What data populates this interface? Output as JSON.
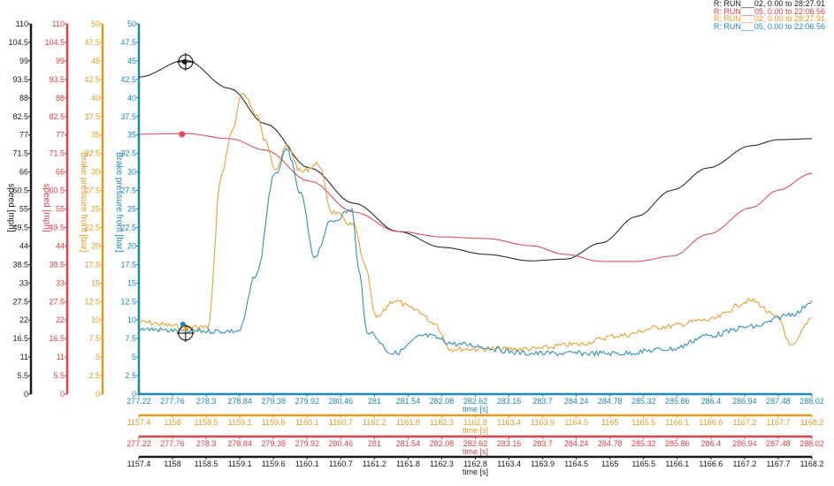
{
  "legend": [
    {
      "label": "R: RUN___02, 0.00 to 28:27.91",
      "color": "#1a1a1a"
    },
    {
      "label": "R: RUN___05, 0.00 to 22:06.56",
      "color": "#d9434b"
    },
    {
      "label": "R: RUN___02, 0.00 to 28:27.91",
      "color": "#e39a1e"
    },
    {
      "label": "R: RUN___05, 0.00 to 22:06.56",
      "color": "#1f88b0"
    }
  ],
  "chart_data": {
    "type": "line",
    "y_axes": [
      {
        "id": "black",
        "title": "speed [mph]",
        "color": "#1a1a1a",
        "range": [
          0,
          110
        ],
        "ticks": [
          "0",
          "5.5",
          "11",
          "16.5",
          "22",
          "27.5",
          "33",
          "38.5",
          "44",
          "49.5",
          "55",
          "60.5",
          "66",
          "71.5",
          "77",
          "82.5",
          "88",
          "93.5",
          "99",
          "104.5",
          "110"
        ]
      },
      {
        "id": "red",
        "title": "speed [mph]",
        "color": "#d9434b",
        "range": [
          0,
          110
        ],
        "ticks": [
          "0",
          "5.5",
          "11",
          "16.5",
          "22",
          "27.5",
          "33",
          "38.5",
          "44",
          "49.5",
          "55",
          "60.5",
          "66",
          "71.5",
          "77",
          "82.5",
          "88",
          "93.5",
          "99",
          "104.5",
          "110"
        ]
      },
      {
        "id": "orange",
        "title": "Brake pressure front [bar]",
        "color": "#e39a1e",
        "range": [
          0,
          50
        ],
        "ticks": [
          "0",
          "2.5",
          "5",
          "7.5",
          "10",
          "12.5",
          "15",
          "17.5",
          "20",
          "22.5",
          "25",
          "27.5",
          "30",
          "32.5",
          "35",
          "37.5",
          "40",
          "42.5",
          "45",
          "47.5",
          "50"
        ]
      },
      {
        "id": "blue",
        "title": "Brake pressure front [bar]",
        "color": "#1f88b0",
        "range": [
          0,
          50
        ],
        "ticks": [
          "0",
          "2.5",
          "5",
          "7.5",
          "10",
          "12.5",
          "15",
          "17.5",
          "20",
          "22.5",
          "25",
          "27.5",
          "30",
          "32.5",
          "35",
          "37.5",
          "40",
          "42.5",
          "45",
          "47.5",
          "50"
        ]
      }
    ],
    "x_axes": [
      {
        "id": "blue",
        "title": "time [s]",
        "color": "#1f88b0",
        "ticks": [
          "277.22",
          "277.76",
          "278.3",
          "278.84",
          "279.38",
          "279.92",
          "280.46",
          "281",
          "281.54",
          "282.08",
          "282.62",
          "283.16",
          "283.7",
          "284.24",
          "284.78",
          "285.32",
          "285.86",
          "286.4",
          "286.94",
          "287.48",
          "288.02"
        ]
      },
      {
        "id": "orange",
        "title": "time [s]",
        "color": "#e39a1e",
        "ticks": [
          "1157.4",
          "1158",
          "1158.5",
          "1159.1",
          "1159.6",
          "1160.1",
          "1160.7",
          "1161.2",
          "1161.8",
          "1162.3",
          "1162.8",
          "1163.4",
          "1163.9",
          "1164.5",
          "1165",
          "1165.5",
          "1166.1",
          "1166.6",
          "1167.2",
          "1167.7",
          "1168.2"
        ]
      },
      {
        "id": "red",
        "title": "time [s]",
        "color": "#d9434b",
        "ticks": [
          "277.22",
          "277.76",
          "278.3",
          "278.84",
          "279.38",
          "279.92",
          "280.46",
          "281",
          "281.54",
          "282.08",
          "282.62",
          "283.16",
          "283.7",
          "284.24",
          "284.78",
          "285.32",
          "285.86",
          "286.4",
          "286.94",
          "287.48",
          "288.02"
        ]
      },
      {
        "id": "black",
        "title": "time [s]",
        "color": "#1a1a1a",
        "ticks": [
          "1157.4",
          "1158",
          "1158.5",
          "1159.1",
          "1159.6",
          "1160.1",
          "1160.7",
          "1161.2",
          "1161.8",
          "1162.3",
          "1162.8",
          "1163.4",
          "1163.9",
          "1164.5",
          "1165",
          "1165.5",
          "1166.1",
          "1166.6",
          "1167.2",
          "1167.7",
          "1168.2"
        ]
      }
    ],
    "x_range": [
      277.22,
      288.02
    ],
    "series": [
      {
        "name": "RUN___02 speed",
        "axis": "black",
        "color": "#1a1a1a",
        "x": [
          277.22,
          277.97,
          278.68,
          279.25,
          279.96,
          280.67,
          281.38,
          282.09,
          282.8,
          283.51,
          284.07,
          284.64,
          285.21,
          285.78,
          286.35,
          287.05,
          287.48,
          288.02
        ],
        "y": [
          94.2,
          99.2,
          90.8,
          80.3,
          67.2,
          56.7,
          48.3,
          43.6,
          41.5,
          39.6,
          40.1,
          44.9,
          52.8,
          60.6,
          67.2,
          73.8,
          75.6,
          75.9
        ]
      },
      {
        "name": "RUN___05 speed",
        "axis": "red",
        "color": "#d9434b",
        "x": [
          277.22,
          277.97,
          278.68,
          279.25,
          279.96,
          280.67,
          281.38,
          282.09,
          282.8,
          283.51,
          284.07,
          284.64,
          285.21,
          285.78,
          286.35,
          287.05,
          287.48,
          288.02
        ],
        "y": [
          77.2,
          77.4,
          75.9,
          72.5,
          63.3,
          54.1,
          48.3,
          46.7,
          46.2,
          44.1,
          41.5,
          39.4,
          39.4,
          41.0,
          47.5,
          55.4,
          60.6,
          65.6
        ]
      },
      {
        "name": "RUN___02 brake pressure",
        "axis": "orange",
        "color": "#e39a1e",
        "x": [
          277.22,
          277.97,
          278.33,
          278.54,
          278.71,
          278.89,
          279.11,
          279.25,
          279.42,
          279.6,
          279.82,
          280.1,
          280.32,
          280.67,
          280.84,
          281.03,
          281.31,
          281.66,
          281.95,
          282.23,
          282.8,
          283.51,
          284.22,
          284.93,
          285.64,
          286.35,
          287.05,
          287.48,
          287.69,
          288.02
        ],
        "y": [
          9.7,
          9.1,
          9.0,
          29.4,
          35.3,
          40.7,
          37.7,
          34.1,
          30.5,
          33.5,
          30.0,
          31.1,
          24.6,
          22.8,
          17.5,
          10.3,
          12.6,
          11.4,
          9.7,
          6.1,
          6.1,
          6.1,
          6.7,
          7.9,
          9.1,
          10.0,
          12.6,
          10.3,
          6.4,
          10.3
        ]
      },
      {
        "name": "RUN___05 brake pressure",
        "axis": "blue",
        "color": "#1f88b0",
        "x": [
          277.22,
          277.97,
          278.82,
          279.11,
          279.39,
          279.6,
          279.82,
          280.03,
          280.32,
          280.64,
          280.74,
          280.88,
          281.31,
          281.8,
          282.37,
          283.51,
          284.93,
          285.78,
          286.35,
          287.05,
          287.76,
          288.02
        ],
        "y": [
          8.8,
          8.5,
          8.5,
          16.2,
          29.4,
          32.9,
          27.0,
          18.6,
          23.4,
          24.9,
          17.4,
          8.5,
          5.5,
          7.9,
          6.7,
          5.5,
          5.5,
          6.1,
          7.9,
          9.1,
          10.9,
          12.6
        ]
      }
    ],
    "cursor_time": 277.97
  }
}
